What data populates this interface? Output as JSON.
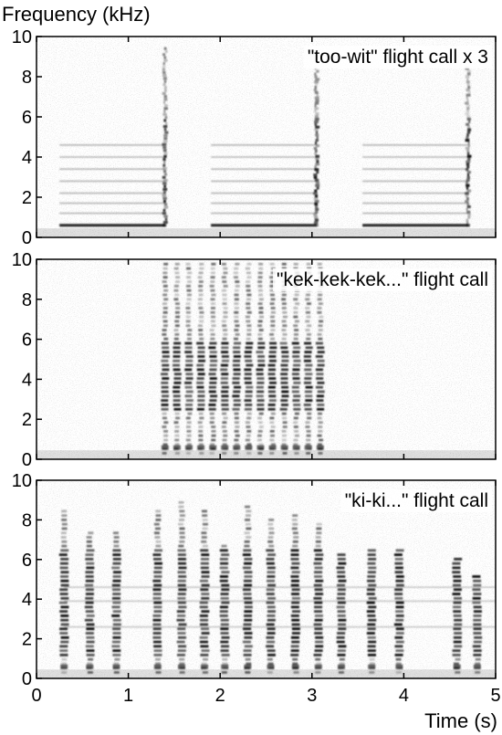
{
  "chart_data": {
    "type": "heatmap",
    "ylabel": "Frequency (kHz)",
    "xlabel": "Time (s)",
    "xlim": [
      0,
      5
    ],
    "x_ticks": [
      "0",
      "1",
      "2",
      "3",
      "4",
      "5"
    ],
    "ylim": [
      0,
      10
    ],
    "y_ticks": [
      "0",
      "2",
      "4",
      "6",
      "8",
      "10"
    ],
    "colors": {
      "ink": "#000000",
      "background": "#ffffff"
    },
    "panels": [
      {
        "title": "\"too-wit\" flight call x 3",
        "syllables": [
          {
            "start": 0.25,
            "end": 1.42,
            "tail_time": 1.4,
            "base_freq": 0.6,
            "tail_top_freq": 9.4
          },
          {
            "start": 1.9,
            "end": 3.07,
            "tail_time": 3.05,
            "base_freq": 0.6,
            "tail_top_freq": 8.4
          },
          {
            "start": 3.55,
            "end": 4.72,
            "tail_time": 4.7,
            "base_freq": 0.6,
            "tail_top_freq": 8.4
          }
        ],
        "harmonics_kHz": [
          1.2,
          1.7,
          2.2,
          2.8,
          3.4,
          4.0,
          4.6
        ]
      },
      {
        "title": "\"kek-kek-kek...\" flight call",
        "notes_time_s": [
          1.4,
          1.53,
          1.66,
          1.79,
          1.92,
          2.05,
          2.18,
          2.31,
          2.44,
          2.57,
          2.7,
          2.83,
          2.96,
          3.09
        ],
        "note_top_freq_kHz": 9.8,
        "energy_band_kHz": [
          2.5,
          6.0
        ]
      },
      {
        "title": "\"ki-ki...\" flight call",
        "notes_time_s": [
          0.3,
          0.58,
          0.87,
          1.32,
          1.58,
          1.83,
          2.05,
          2.3,
          2.55,
          2.82,
          3.07,
          3.32,
          3.65,
          3.95,
          4.58,
          4.8
        ],
        "note_top_freq_kHz": [
          8.5,
          7.4,
          7.5,
          8.6,
          9.0,
          8.6,
          6.8,
          8.7,
          8.0,
          8.4,
          7.8,
          6.4,
          6.5,
          6.6,
          6.2,
          5.2
        ],
        "energy_band_kHz": [
          1.0,
          6.5
        ]
      }
    ]
  }
}
